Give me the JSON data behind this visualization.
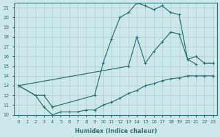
{
  "xlabel": "Humidex (Indice chaleur)",
  "bg_color": "#cce8ea",
  "grid_color": "#aacccc",
  "line_color": "#2a7070",
  "xlim": [
    -0.5,
    23.5
  ],
  "ylim": [
    10,
    21.5
  ],
  "xticks": [
    0,
    1,
    2,
    3,
    4,
    5,
    6,
    7,
    8,
    9,
    10,
    11,
    12,
    13,
    14,
    15,
    16,
    17,
    18,
    19,
    20,
    21,
    22,
    23
  ],
  "yticks": [
    10,
    11,
    12,
    13,
    14,
    15,
    16,
    17,
    18,
    19,
    20,
    21
  ],
  "line1_x": [
    0,
    2,
    3,
    4,
    9,
    10,
    11,
    12,
    13,
    14,
    15,
    16,
    17,
    18,
    19,
    20,
    21
  ],
  "line1_y": [
    13,
    12,
    12,
    10.8,
    12,
    15.3,
    17.8,
    20.0,
    20.5,
    21.5,
    21.2,
    20.8,
    21.2,
    20.5,
    20.3,
    15.7,
    15.2
  ],
  "line2_x": [
    0,
    13,
    14,
    15,
    16,
    17,
    18,
    19,
    20,
    21,
    22,
    23
  ],
  "line2_y": [
    13,
    15,
    18,
    15.3,
    16.5,
    17.5,
    18.5,
    18.3,
    15.7,
    16.0,
    15.3,
    15.3
  ],
  "line3_x": [
    0,
    2,
    3,
    4,
    5,
    6,
    7,
    8,
    9,
    10,
    11,
    12,
    13,
    14,
    15,
    16,
    17,
    18,
    19,
    20,
    21,
    22,
    23
  ],
  "line3_y": [
    13,
    12,
    10.8,
    10.0,
    10.3,
    10.3,
    10.3,
    10.5,
    10.5,
    11,
    11.3,
    11.7,
    12.2,
    12.5,
    13.0,
    13.2,
    13.5,
    13.7,
    13.8,
    14.0,
    14.0,
    14.0,
    14.0
  ]
}
